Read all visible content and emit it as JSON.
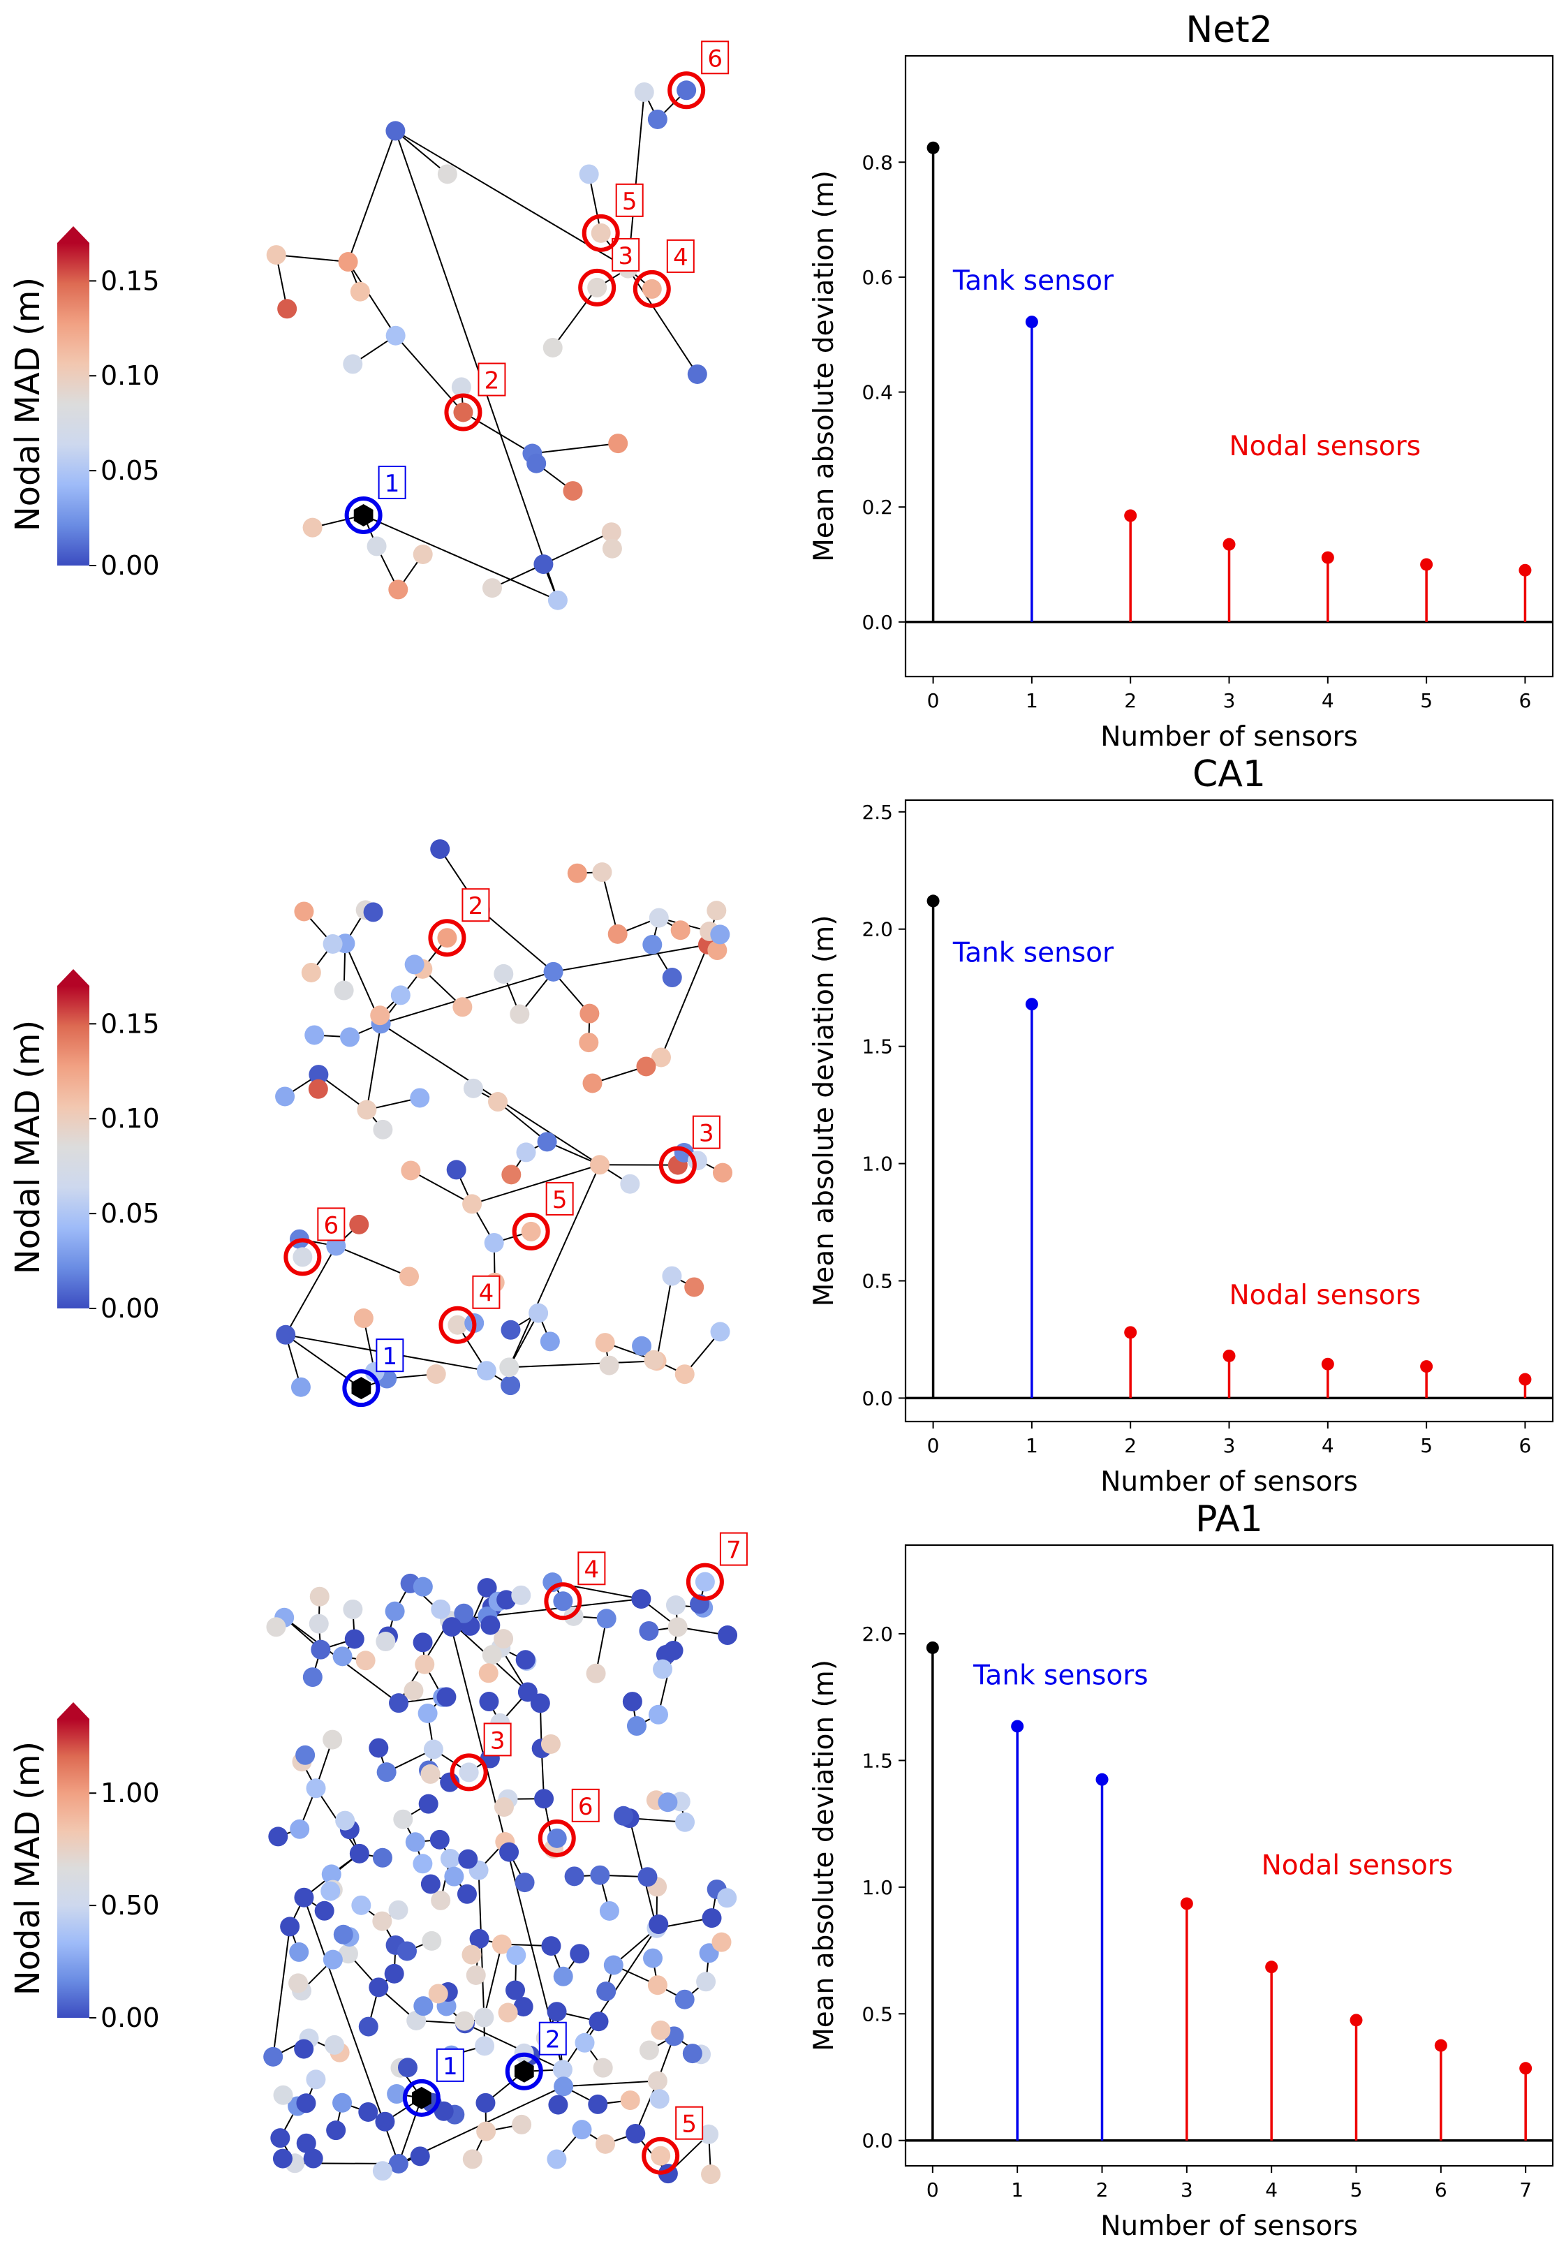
{
  "colors": {
    "black": "#000000",
    "tank": "#0000ee",
    "nodal": "#ee0000",
    "colormap": [
      "#3b4cc0",
      "#6a8ce3",
      "#9ebbf8",
      "#cdd8ee",
      "#dcdcdc",
      "#f2c7b0",
      "#f1a183",
      "#dd6a52",
      "#b40426"
    ]
  },
  "chart_data": [
    {
      "type": "network-map",
      "name": "Net2",
      "colorbar": {
        "label": "Nodal MAD (m)",
        "range": [
          0,
          0.17
        ],
        "ticks": [
          0.0,
          0.05,
          0.1,
          0.15
        ],
        "tick_labels": [
          "0.00",
          "0.05",
          "0.10",
          "0.15"
        ],
        "extend": "max"
      },
      "sensor_labels": [
        {
          "id": "1",
          "kind": "tank"
        },
        {
          "id": "2",
          "kind": "nodal"
        },
        {
          "id": "3",
          "kind": "nodal"
        },
        {
          "id": "4",
          "kind": "nodal"
        },
        {
          "id": "5",
          "kind": "nodal"
        },
        {
          "id": "6",
          "kind": "nodal"
        }
      ]
    },
    {
      "type": "stem",
      "title": "Net2",
      "xlabel": "Number of sensors",
      "ylabel": "Mean absolute deviation (m)",
      "x": [
        0,
        1,
        2,
        3,
        4,
        5,
        6
      ],
      "y": [
        0.825,
        0.522,
        0.185,
        0.135,
        0.112,
        0.1,
        0.09
      ],
      "kinds": [
        "none",
        "tank",
        "nodal",
        "nodal",
        "nodal",
        "nodal",
        "nodal"
      ],
      "xlim": [
        -0.28,
        6.28
      ],
      "ylim": [
        -0.095,
        0.985
      ],
      "yticks": [
        0.0,
        0.2,
        0.4,
        0.6,
        0.8
      ],
      "ytick_labels": [
        "0.0",
        "0.2",
        "0.4",
        "0.6",
        "0.8"
      ],
      "xticks": [
        0,
        1,
        2,
        3,
        4,
        5,
        6
      ],
      "annotations": [
        {
          "text": "Tank sensor",
          "kind": "tank",
          "x": 0.2,
          "y": 0.578
        },
        {
          "text": "Nodal sensors",
          "kind": "nodal",
          "x": 3.0,
          "y": 0.29
        }
      ]
    },
    {
      "type": "network-map",
      "name": "CA1",
      "colorbar": {
        "label": "Nodal MAD (m)",
        "range": [
          0,
          0.17
        ],
        "ticks": [
          0.0,
          0.05,
          0.1,
          0.15
        ],
        "tick_labels": [
          "0.00",
          "0.05",
          "0.10",
          "0.15"
        ],
        "extend": "max"
      },
      "sensor_labels": [
        {
          "id": "1",
          "kind": "tank"
        },
        {
          "id": "2",
          "kind": "nodal"
        },
        {
          "id": "3",
          "kind": "nodal"
        },
        {
          "id": "4",
          "kind": "nodal"
        },
        {
          "id": "5",
          "kind": "nodal"
        },
        {
          "id": "6",
          "kind": "nodal"
        }
      ]
    },
    {
      "type": "stem",
      "title": "CA1",
      "xlabel": "Number of sensors",
      "ylabel": "Mean absolute deviation (m)",
      "x": [
        0,
        1,
        2,
        3,
        4,
        5,
        6
      ],
      "y": [
        2.12,
        1.68,
        0.28,
        0.18,
        0.145,
        0.135,
        0.08
      ],
      "kinds": [
        "none",
        "tank",
        "nodal",
        "nodal",
        "nodal",
        "nodal",
        "nodal"
      ],
      "xlim": [
        -0.28,
        6.28
      ],
      "ylim": [
        -0.1,
        2.55
      ],
      "yticks": [
        0.0,
        0.5,
        1.0,
        1.5,
        2.0,
        2.5
      ],
      "ytick_labels": [
        "0.0",
        "0.5",
        "1.0",
        "1.5",
        "2.0",
        "2.5"
      ],
      "xticks": [
        0,
        1,
        2,
        3,
        4,
        5,
        6
      ],
      "annotations": [
        {
          "text": "Tank sensor",
          "kind": "tank",
          "x": 0.2,
          "y": 1.86
        },
        {
          "text": "Nodal sensors",
          "kind": "nodal",
          "x": 3.0,
          "y": 0.4
        }
      ]
    },
    {
      "type": "network-map",
      "name": "PA1",
      "colorbar": {
        "label": "Nodal MAD (m)",
        "range": [
          0,
          1.33
        ],
        "ticks": [
          0.0,
          0.5,
          1.0
        ],
        "tick_labels": [
          "0.00",
          "0.50",
          "1.00"
        ],
        "extend": "max"
      },
      "sensor_labels": [
        {
          "id": "1",
          "kind": "tank"
        },
        {
          "id": "2",
          "kind": "tank"
        },
        {
          "id": "3",
          "kind": "nodal"
        },
        {
          "id": "4",
          "kind": "nodal"
        },
        {
          "id": "5",
          "kind": "nodal"
        },
        {
          "id": "6",
          "kind": "nodal"
        },
        {
          "id": "7",
          "kind": "nodal"
        }
      ]
    },
    {
      "type": "stem",
      "title": "PA1",
      "xlabel": "Number of sensors",
      "ylabel": "Mean absolute deviation (m)",
      "x": [
        0,
        1,
        2,
        3,
        4,
        5,
        6,
        7
      ],
      "y": [
        1.945,
        1.635,
        1.425,
        0.935,
        0.685,
        0.475,
        0.375,
        0.285
      ],
      "kinds": [
        "none",
        "tank",
        "tank",
        "nodal",
        "nodal",
        "nodal",
        "nodal",
        "nodal"
      ],
      "xlim": [
        -0.32,
        7.32
      ],
      "ylim": [
        -0.1,
        2.35
      ],
      "yticks": [
        0.0,
        0.5,
        1.0,
        1.5,
        2.0
      ],
      "ytick_labels": [
        "0.0",
        "0.5",
        "1.0",
        "1.5",
        "2.0"
      ],
      "xticks": [
        0,
        1,
        2,
        3,
        4,
        5,
        6,
        7
      ],
      "annotations": [
        {
          "text": "Tank sensors",
          "kind": "tank",
          "x": 0.48,
          "y": 1.8
        },
        {
          "text": "Nodal sensors",
          "kind": "nodal",
          "x": 3.88,
          "y": 1.05
        }
      ]
    }
  ]
}
